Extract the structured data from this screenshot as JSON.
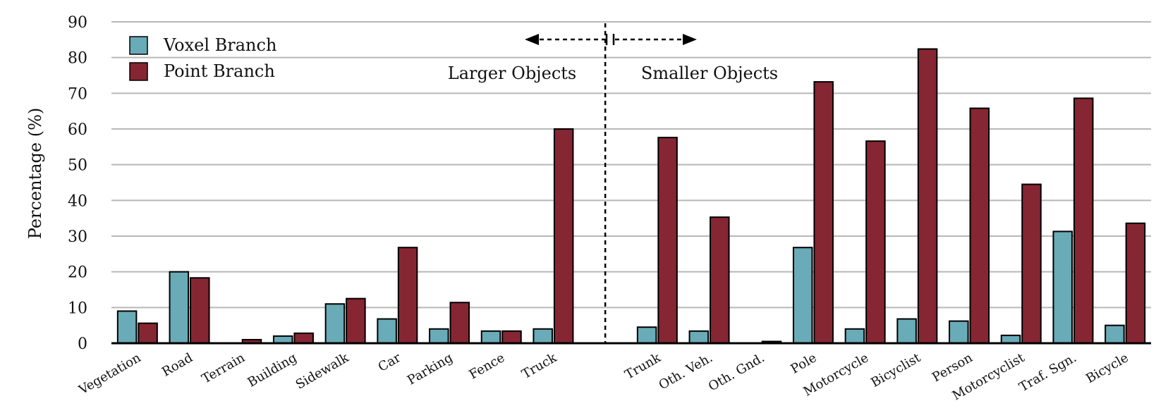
{
  "chart_data": {
    "type": "bar",
    "title": "",
    "xlabel": "",
    "ylabel": "Percentage (%)",
    "ylim": [
      0,
      90
    ],
    "yticks": [
      0,
      10,
      20,
      30,
      40,
      50,
      60,
      70,
      80,
      90
    ],
    "grid": true,
    "legend_position": "top-left",
    "categories": [
      "Vegetation",
      "Road",
      "Terrain",
      "Building",
      "Sidewalk",
      "Car",
      "Parking",
      "Fence",
      "Truck",
      "Trunk",
      "Oth. Veh.",
      "Oth. Gnd.",
      "Pole",
      "Motorcycle",
      "Bicyclist",
      "Person",
      "Motorcyclist",
      "Traf. Sgn.",
      "Bicycle"
    ],
    "series": [
      {
        "name": "Voxel Branch",
        "color": "#6aabb8",
        "values": [
          9.0,
          20.0,
          0.0,
          2.0,
          11.0,
          6.8,
          4.0,
          3.4,
          4.0,
          4.5,
          3.4,
          0.0,
          26.8,
          4.0,
          6.8,
          6.2,
          2.2,
          31.3,
          5.0
        ]
      },
      {
        "name": "Point Branch",
        "color": "#862633",
        "values": [
          5.6,
          18.3,
          1.0,
          2.8,
          12.5,
          26.8,
          11.4,
          3.4,
          60.0,
          57.6,
          35.3,
          0.5,
          73.2,
          56.6,
          82.4,
          65.8,
          44.5,
          68.6,
          33.6
        ]
      }
    ],
    "annotations": {
      "left": "Larger Objects",
      "right": "Smaller Objects"
    }
  }
}
